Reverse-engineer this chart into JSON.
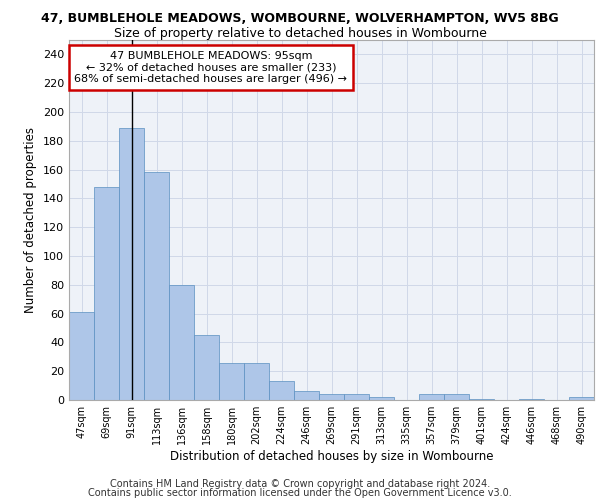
{
  "title_line1": "47, BUMBLEHOLE MEADOWS, WOMBOURNE, WOLVERHAMPTON, WV5 8BG",
  "title_line2": "Size of property relative to detached houses in Wombourne",
  "xlabel": "Distribution of detached houses by size in Wombourne",
  "ylabel": "Number of detached properties",
  "categories": [
    "47sqm",
    "69sqm",
    "91sqm",
    "113sqm",
    "136sqm",
    "158sqm",
    "180sqm",
    "202sqm",
    "224sqm",
    "246sqm",
    "269sqm",
    "291sqm",
    "313sqm",
    "335sqm",
    "357sqm",
    "379sqm",
    "401sqm",
    "424sqm",
    "446sqm",
    "468sqm",
    "490sqm"
  ],
  "values": [
    61,
    148,
    189,
    158,
    80,
    45,
    26,
    26,
    13,
    6,
    4,
    4,
    2,
    0,
    4,
    4,
    1,
    0,
    1,
    0,
    2
  ],
  "bar_color": "#aec6e8",
  "bar_edge_color": "#5a8fc0",
  "vline_x_index": 2,
  "vline_color": "#000000",
  "annotation_line1": "47 BUMBLEHOLE MEADOWS: 95sqm",
  "annotation_line2": "← 32% of detached houses are smaller (233)",
  "annotation_line3": "68% of semi-detached houses are larger (496) →",
  "annotation_box_edge_color": "#cc0000",
  "ylim": [
    0,
    250
  ],
  "yticks": [
    0,
    20,
    40,
    60,
    80,
    100,
    120,
    140,
    160,
    180,
    200,
    220,
    240
  ],
  "grid_color": "#d0d8e8",
  "background_color": "#eef2f8",
  "footer_line1": "Contains HM Land Registry data © Crown copyright and database right 2024.",
  "footer_line2": "Contains public sector information licensed under the Open Government Licence v3.0.",
  "title_fontsize": 9,
  "subtitle_fontsize": 9,
  "annotation_fontsize": 8,
  "footer_fontsize": 7
}
